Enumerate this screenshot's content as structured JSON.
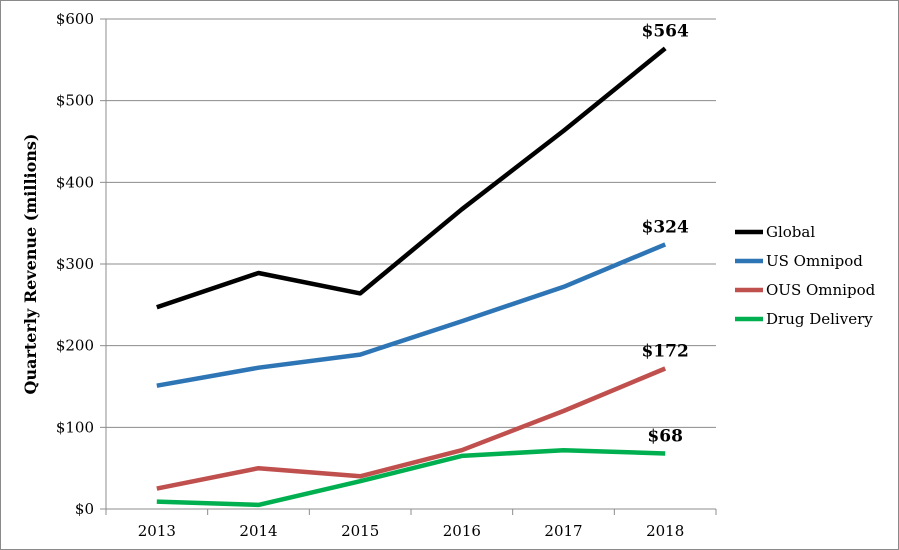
{
  "chart_data": {
    "type": "line",
    "title": "",
    "xlabel": "",
    "ylabel": "Quarterly Revenue (millions)",
    "x": [
      "2013",
      "2014",
      "2015",
      "2016",
      "2017",
      "2018"
    ],
    "ylim": [
      0,
      600
    ],
    "yticks": [
      "$0",
      "$100",
      "$200",
      "$300",
      "$400",
      "$500",
      "$600"
    ],
    "grid": "horizontal",
    "legend_position": "right",
    "series": [
      {
        "name": "Global",
        "color": "#000000",
        "values": [
          247,
          289,
          264,
          367,
          463,
          564
        ]
      },
      {
        "name": "US Omnipod",
        "color": "#2e75b6",
        "values": [
          151,
          173,
          189,
          230,
          272,
          324
        ]
      },
      {
        "name": "OUS Omnipod",
        "color": "#c0504d",
        "values": [
          25,
          50,
          40,
          72,
          120,
          172
        ]
      },
      {
        "name": "Drug Delivery",
        "color": "#00b050",
        "values": [
          9,
          5,
          34,
          65,
          72,
          68
        ]
      }
    ],
    "annotations": [
      {
        "text": "$564",
        "series": "Global",
        "x": "2018",
        "value": 564
      },
      {
        "text": "$324",
        "series": "US Omnipod",
        "x": "2018",
        "value": 324
      },
      {
        "text": "$172",
        "series": "OUS Omnipod",
        "x": "2018",
        "value": 172
      },
      {
        "text": "$68",
        "series": "Drug Delivery",
        "x": "2018",
        "value": 68
      }
    ]
  }
}
